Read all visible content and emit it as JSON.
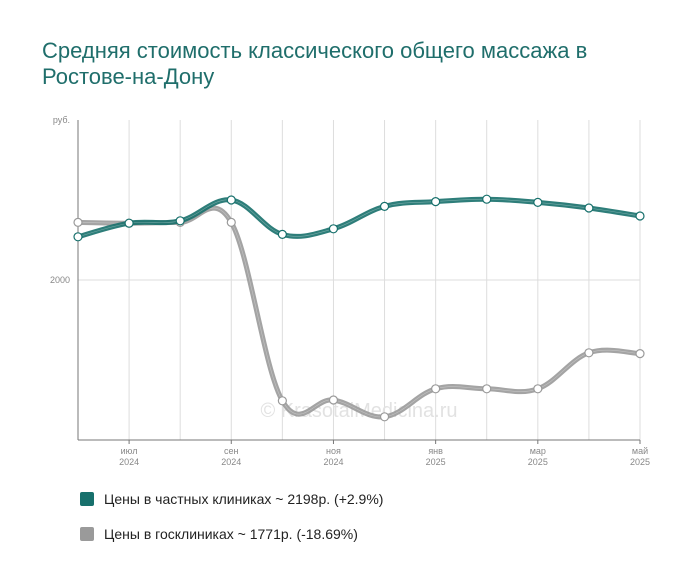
{
  "title": "Средняя стоимость классического общего массажа в Ростове-на-Дону",
  "watermark": "© KrasotaiMedicina.ru",
  "colors": {
    "private": "#17706c",
    "public": "#9a9a9a",
    "grid": "#dddddd",
    "axis": "#777777"
  },
  "chart_data": {
    "type": "line",
    "title": "Средняя стоимость классического общего массажа в Ростове-на-Дону",
    "ylabel": "руб.",
    "y_ticks": [
      2000
    ],
    "ylim": [
      1000,
      3000
    ],
    "x_tick_labels": [
      {
        "month": "июл",
        "year": "2024"
      },
      {
        "month": "сен",
        "year": "2024"
      },
      {
        "month": "ноя",
        "year": "2024"
      },
      {
        "month": "янв",
        "year": "2025"
      },
      {
        "month": "мар",
        "year": "2025"
      },
      {
        "month": "май",
        "year": "2025"
      }
    ],
    "x": [
      "2024-06",
      "2024-07",
      "2024-08",
      "2024-09",
      "2024-10",
      "2024-11",
      "2024-12",
      "2025-01",
      "2025-02",
      "2025-03",
      "2025-04",
      "2025-05"
    ],
    "grid": true,
    "legend_position": "bottom",
    "series": [
      {
        "name": "Цены в частных клиниках ~ 2198р. (+2.9%)",
        "color": "#17706c",
        "values": [
          2270,
          2355,
          2370,
          2500,
          2285,
          2320,
          2460,
          2490,
          2505,
          2485,
          2450,
          2400
        ]
      },
      {
        "name": "Цены в госклиниках ~ 1771р. (-18.69%)",
        "color": "#9a9a9a",
        "values": [
          2360,
          2355,
          2360,
          2360,
          1245,
          1250,
          1145,
          1320,
          1320,
          1320,
          1545,
          1540
        ]
      }
    ]
  },
  "legend": [
    {
      "label": "Цены в частных клиниках ~ 2198р. (+2.9%)",
      "color": "#17706c"
    },
    {
      "label": "Цены в госклиниках ~ 1771р. (-18.69%)",
      "color": "#9a9a9a"
    }
  ]
}
